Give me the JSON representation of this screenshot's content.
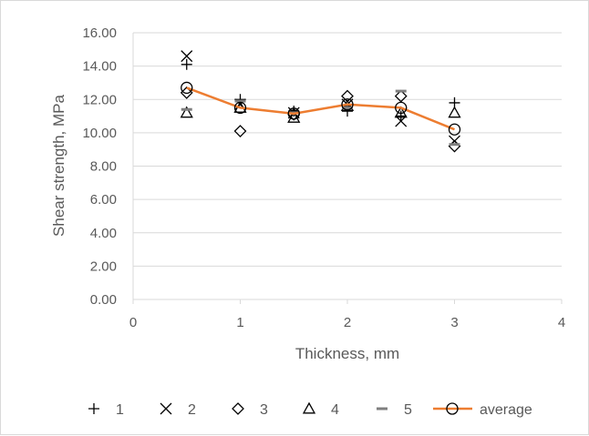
{
  "chart_data": {
    "type": "scatter",
    "title": "",
    "xlabel": "Thickness, mm",
    "ylabel": "Shear strength, MPa",
    "xlim": [
      0,
      4
    ],
    "ylim": [
      0,
      16
    ],
    "x_ticks": [
      "0",
      "1",
      "2",
      "3",
      "4"
    ],
    "y_ticks": [
      "0.00",
      "2.00",
      "4.00",
      "6.00",
      "8.00",
      "10.00",
      "12.00",
      "14.00",
      "16.00"
    ],
    "grid": "horizontal",
    "legend_position": "bottom",
    "x": [
      0.5,
      1,
      1.5,
      2,
      2.5,
      3
    ],
    "series": [
      {
        "name": "1",
        "marker": "plus",
        "values": [
          14.1,
          12.0,
          11.3,
          11.3,
          11.0,
          11.8
        ]
      },
      {
        "name": "2",
        "marker": "cross",
        "values": [
          14.6,
          11.7,
          11.2,
          11.7,
          10.7,
          9.5
        ]
      },
      {
        "name": "3",
        "marker": "diamond",
        "values": [
          12.4,
          10.1,
          11.1,
          12.2,
          12.2,
          9.2
        ]
      },
      {
        "name": "4",
        "marker": "triangle",
        "values": [
          11.2,
          11.5,
          10.9,
          11.6,
          11.2,
          11.2
        ]
      },
      {
        "name": "5",
        "marker": "dash",
        "values": [
          11.4,
          11.9,
          11.2,
          11.5,
          12.5,
          9.3
        ]
      },
      {
        "name": "average",
        "marker": "circle",
        "line": true,
        "values": [
          12.7,
          11.5,
          11.15,
          11.7,
          11.5,
          10.2
        ]
      }
    ],
    "colors": {
      "markers": "#000000",
      "average_line": "#ED7D31",
      "grid": "#d9d9d9",
      "text": "#595959"
    }
  }
}
